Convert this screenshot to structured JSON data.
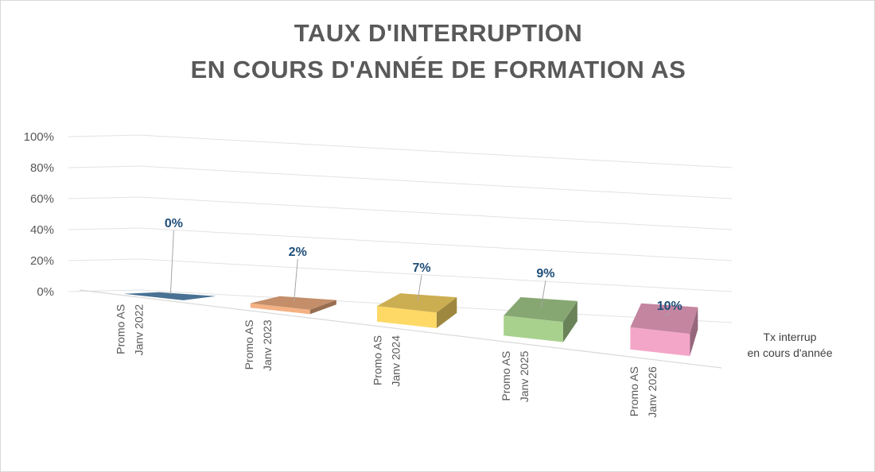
{
  "chart_data": {
    "type": "bar",
    "title_lines": [
      "TAUX D'INTERRUPTION",
      "EN COURS D'ANNÉE DE FORMATION AS"
    ],
    "categories": [
      [
        "Promo AS",
        "Janv 2022"
      ],
      [
        "Promo AS",
        "Janv 2023"
      ],
      [
        "Promo AS",
        "Janv 2024"
      ],
      [
        "Promo AS",
        "Janv 2025"
      ],
      [
        "Promo AS",
        "Janv 2026"
      ]
    ],
    "series": [
      {
        "name": [
          "Tx interrup",
          "en cours d'année"
        ],
        "values": [
          0,
          0.02,
          0.07,
          0.09,
          0.1
        ],
        "data_labels": [
          "0%",
          "2%",
          "7%",
          "9%",
          "10%"
        ]
      }
    ],
    "bar_colors": [
      "#5b8db8",
      "#f4b183",
      "#ffd966",
      "#a9d18e",
      "#f4a6c8"
    ],
    "y_ticks": [
      "0%",
      "20%",
      "40%",
      "60%",
      "80%",
      "100%"
    ],
    "ylim": [
      0,
      1
    ],
    "grid": true,
    "style": "3d"
  }
}
